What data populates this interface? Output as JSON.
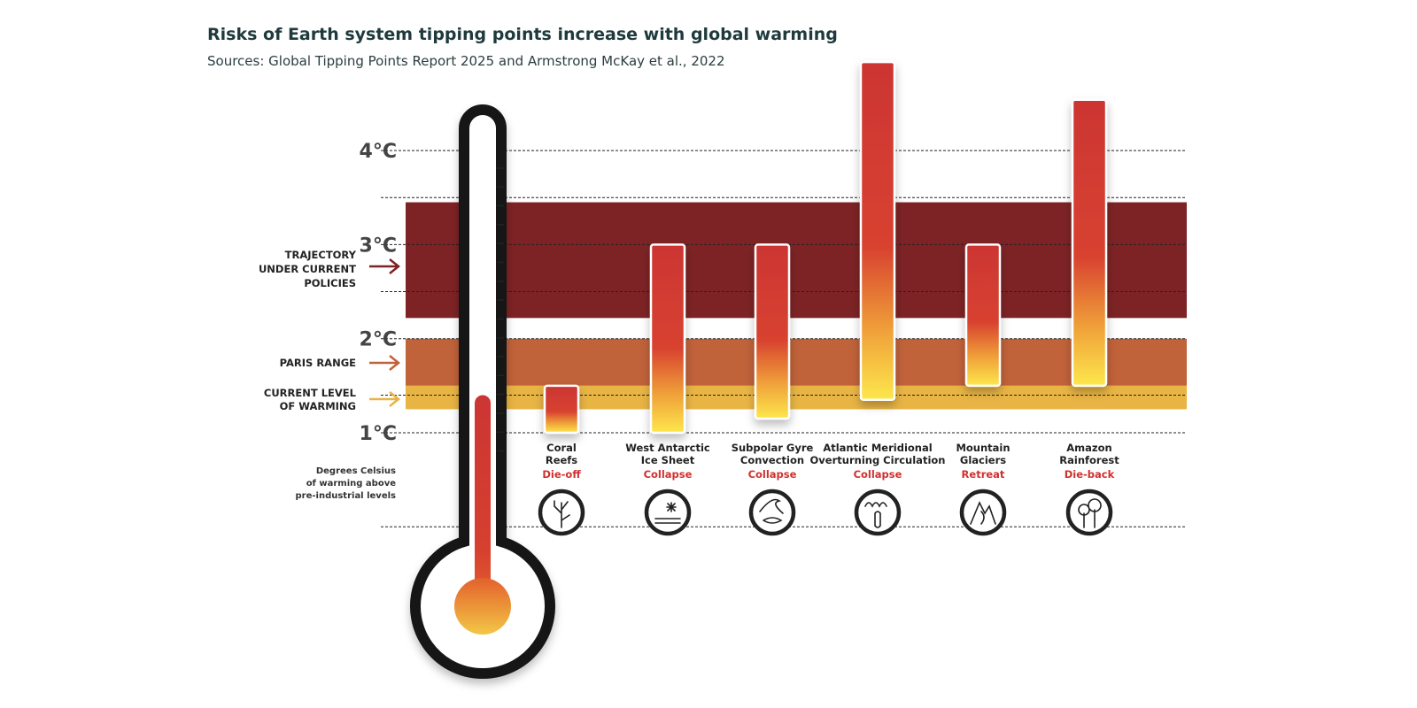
{
  "chart_data": {
    "type": "bar",
    "title": "Risks of Earth system tipping points increase with global warming",
    "subtitle": "Sources: Global Tipping Points Report 2025 and Armstrong McKay et al., 2022",
    "ylabel": "Degrees Celsius of warming above pre-industrial levels",
    "ylabel_lines": [
      "Degrees Celsius",
      "of warming above",
      "pre-industrial levels"
    ],
    "ylim": [
      0.5,
      4.5
    ],
    "yticks": [
      {
        "v": 4,
        "label": "4°C"
      },
      {
        "v": 3,
        "label": "3°C"
      },
      {
        "v": 2,
        "label": "2°C"
      },
      {
        "v": 1,
        "label": "1°C"
      }
    ],
    "gridlines": [
      4,
      3.5,
      3,
      2.5,
      2,
      1.4,
      1,
      0
    ],
    "bands": [
      {
        "name": "trajectory",
        "label_lines": [
          "TRAJECTORY",
          "UNDER CURRENT",
          "POLICIES"
        ],
        "low": 2.22,
        "high": 3.45,
        "color": "#7d2325"
      },
      {
        "name": "paris",
        "label_lines": [
          "PARIS RANGE"
        ],
        "low": 1.5,
        "high": 2.0,
        "color": "#c0623a"
      },
      {
        "name": "current",
        "label_lines": [
          "CURRENT LEVEL",
          "OF WARMING"
        ],
        "low": 1.25,
        "high": 1.5,
        "color": "#e8b444"
      }
    ],
    "current_warming": 1.4,
    "categories": [
      {
        "name_lines": [
          "Coral",
          "Reefs"
        ],
        "effect": "Die-off",
        "icon": "coral-icon",
        "low": 1.0,
        "high": 1.5
      },
      {
        "name_lines": [
          "West Antarctic",
          "Ice Sheet"
        ],
        "effect": "Collapse",
        "icon": "ice-sheet-icon",
        "low": 1.0,
        "high": 3.0
      },
      {
        "name_lines": [
          "Subpolar Gyre",
          "Convection"
        ],
        "effect": "Collapse",
        "icon": "gyre-icon",
        "low": 1.15,
        "high": 3.0
      },
      {
        "name_lines": [
          "Atlantic Meridional",
          "Overturning Circulation"
        ],
        "effect": "Collapse",
        "icon": "ocean-current-icon",
        "low": 1.35,
        "high": 4.94
      },
      {
        "name_lines": [
          "Mountain",
          "Glaciers"
        ],
        "effect": "Retreat",
        "icon": "mountain-icon",
        "low": 1.5,
        "high": 3.0
      },
      {
        "name_lines": [
          "Amazon",
          "Rainforest"
        ],
        "effect": "Die-back",
        "icon": "forest-icon",
        "low": 1.5,
        "high": 4.54
      }
    ],
    "colors": {
      "bar_top": "#cc3533",
      "bar_bottom": "#fde74c",
      "effect": "#d0302f"
    }
  }
}
